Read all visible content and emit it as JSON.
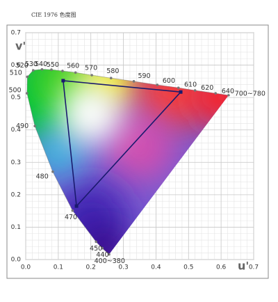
{
  "chart_data": {
    "type": "chromaticity",
    "title": "CIE 1976 色度图",
    "x_label": "u'",
    "y_label": "v'",
    "xlim": [
      0,
      0.7
    ],
    "ylim": [
      0,
      0.7
    ],
    "xticks": [
      {
        "value": 0,
        "label": "0.0"
      },
      0.1,
      0.2,
      0.3,
      0.4,
      0.5,
      0.6,
      0.7
    ],
    "yticks": [
      {
        "value": 0,
        "label": "0.0"
      },
      0.1,
      0.2,
      0.3,
      0.4,
      0.5,
      0.6,
      0.7
    ],
    "grid": true,
    "locus": {
      "labels": [
        "400~380",
        "440",
        "450",
        "470",
        "480",
        "490",
        "500",
        "510",
        "520",
        "530",
        "540",
        "550",
        "560",
        "570",
        "580",
        "590",
        "600",
        "610",
        "620",
        "640",
        "700~780"
      ],
      "x": [
        0.256,
        0.235,
        0.216,
        0.144,
        0.083,
        0.028,
        0.004,
        0.005,
        0.023,
        0.05,
        0.079,
        0.113,
        0.153,
        0.203,
        0.262,
        0.332,
        0.404,
        0.469,
        0.52,
        0.583,
        0.623
      ],
      "values": [
        0.016,
        0.035,
        0.055,
        0.151,
        0.271,
        0.412,
        0.513,
        0.564,
        0.584,
        0.587,
        0.586,
        0.582,
        0.577,
        0.569,
        0.56,
        0.55,
        0.539,
        0.53,
        0.522,
        0.513,
        0.507
      ],
      "color": "#777777"
    },
    "triangle": {
      "x": [
        0.115,
        0.476,
        0.156
      ],
      "values": [
        0.552,
        0.517,
        0.165
      ],
      "color": "#1a1a6e"
    }
  }
}
